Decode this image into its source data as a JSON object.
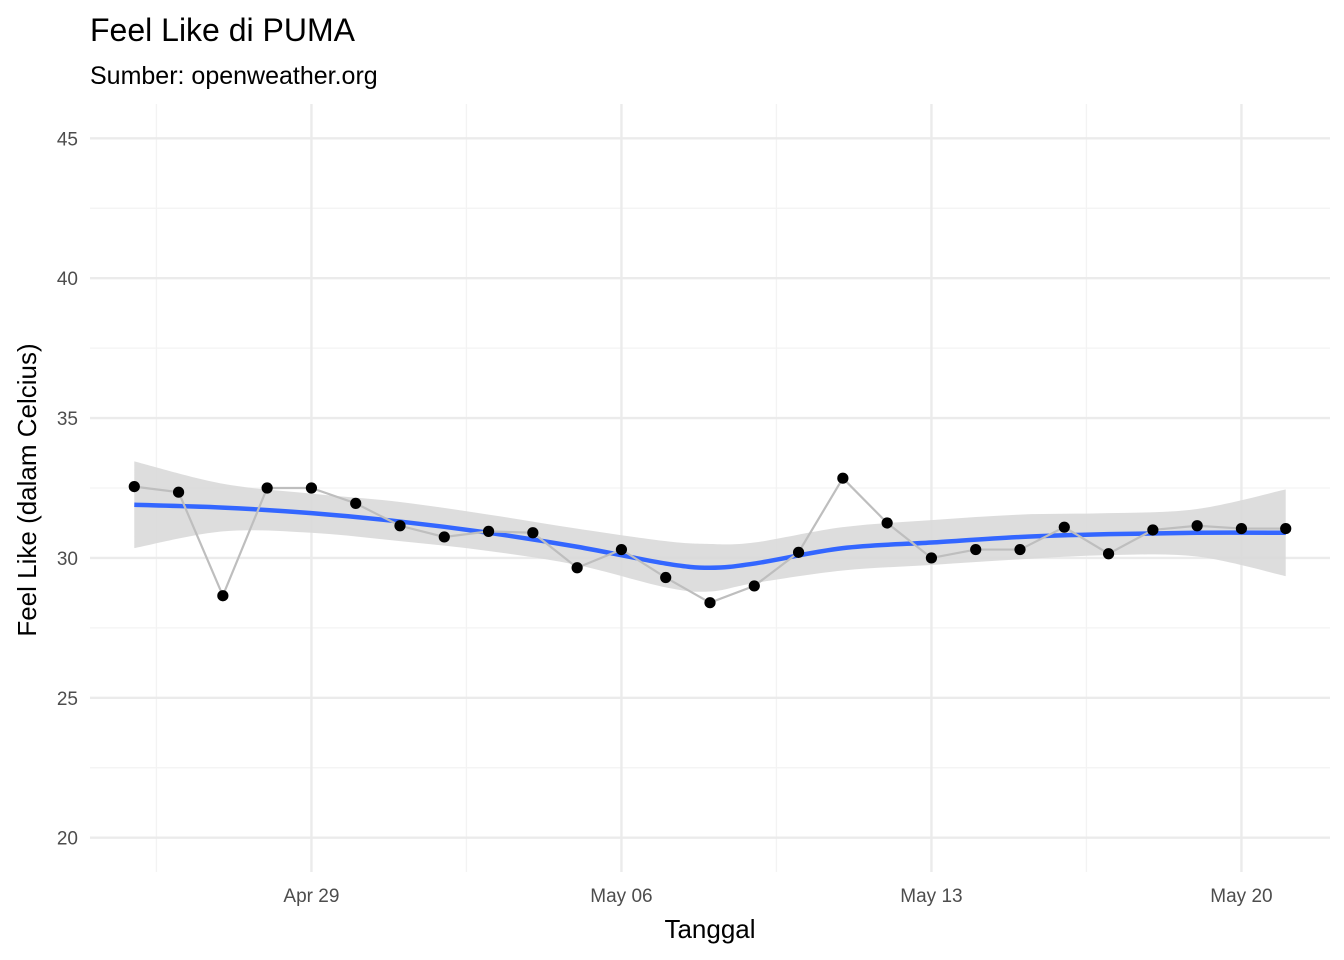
{
  "chart_data": {
    "type": "line",
    "title": "Feel Like di PUMA",
    "subtitle": "Sumber: openweather.org",
    "xlabel": "Tanggal",
    "ylabel": "Feel Like (dalam Celcius)",
    "x_axis_type": "date",
    "xlim": [
      "2022-04-24",
      "2022-05-22"
    ],
    "ylim": [
      20,
      45
    ],
    "y_ticks": [
      20,
      25,
      30,
      35,
      40,
      45
    ],
    "x_ticks": [
      {
        "date": "2022-04-29",
        "label": "Apr 29"
      },
      {
        "date": "2022-05-06",
        "label": "May 06"
      },
      {
        "date": "2022-05-13",
        "label": "May 13"
      },
      {
        "date": "2022-05-20",
        "label": "May 20"
      }
    ],
    "grid": true,
    "legend": "none",
    "colors": {
      "points": "#000000",
      "line": "#bebebe",
      "smooth": "#3366ff",
      "ribbon": "#d9d9d9",
      "grid": "#ebebeb"
    },
    "series": [
      {
        "x": [
          "2022-04-25",
          "2022-04-26",
          "2022-04-27",
          "2022-04-28",
          "2022-04-29",
          "2022-04-30",
          "2022-05-01",
          "2022-05-02",
          "2022-05-03",
          "2022-05-04",
          "2022-05-05",
          "2022-05-06",
          "2022-05-07",
          "2022-05-08",
          "2022-05-09",
          "2022-05-10",
          "2022-05-11",
          "2022-05-12",
          "2022-05-13",
          "2022-05-14",
          "2022-05-15",
          "2022-05-16",
          "2022-05-17",
          "2022-05-18",
          "2022-05-19",
          "2022-05-20",
          "2022-05-21"
        ],
        "y": [
          32.55,
          32.35,
          28.65,
          32.5,
          32.5,
          31.95,
          31.15,
          30.75,
          30.95,
          30.9,
          29.65,
          30.3,
          29.3,
          28.4,
          29.0,
          30.2,
          32.85,
          31.25,
          30.0,
          30.3,
          30.3,
          31.1,
          30.15,
          31.0,
          31.15,
          31.05,
          31.05
        ]
      }
    ],
    "smooth": {
      "x": [
        "2022-04-25",
        "2022-04-27",
        "2022-04-29",
        "2022-05-01",
        "2022-05-03",
        "2022-05-05",
        "2022-05-07",
        "2022-05-08",
        "2022-05-09",
        "2022-05-11",
        "2022-05-13",
        "2022-05-15",
        "2022-05-17",
        "2022-05-19",
        "2022-05-21"
      ],
      "y": [
        31.9,
        31.8,
        31.6,
        31.3,
        30.9,
        30.4,
        29.8,
        29.65,
        29.8,
        30.35,
        30.55,
        30.75,
        30.85,
        30.9,
        30.9
      ],
      "lower": [
        30.35,
        30.95,
        30.9,
        30.6,
        30.25,
        29.75,
        28.95,
        28.8,
        29.1,
        29.55,
        29.75,
        29.95,
        30.1,
        30.05,
        29.35
      ],
      "upper": [
        33.45,
        32.65,
        32.3,
        32.0,
        31.55,
        31.05,
        30.6,
        30.5,
        30.55,
        31.1,
        31.35,
        31.55,
        31.6,
        31.75,
        32.45
      ]
    }
  }
}
